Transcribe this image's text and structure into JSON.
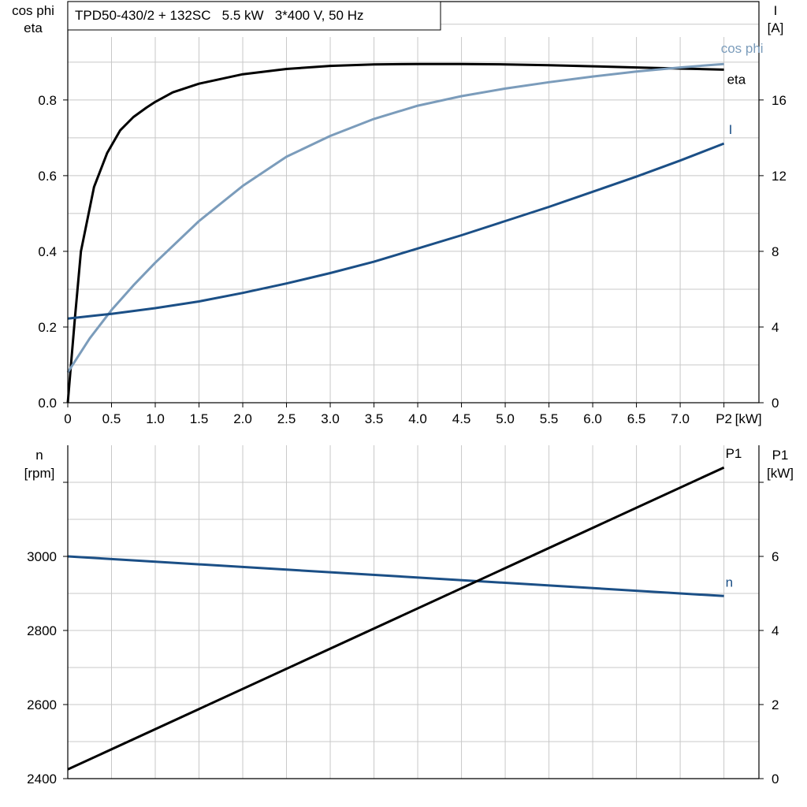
{
  "chart_data": [
    {
      "type": "line",
      "title": "TPD50-430/2 + 132SC   5.5 kW   3*400 V, 50 Hz",
      "xlabel": "P2 [kW]",
      "x_ticks": [
        "0",
        "0.5",
        "1.0",
        "1.5",
        "2.0",
        "2.5",
        "3.0",
        "3.5",
        "4.0",
        "4.5",
        "5.0",
        "5.5",
        "6.0",
        "6.5",
        "7.0"
      ],
      "x_end_label": "P2",
      "x_unit_label": "[kW]",
      "xlim": [
        0,
        7.9
      ],
      "ylabel_left": [
        "cos phi",
        "eta"
      ],
      "ylim_left": [
        0,
        1.06
      ],
      "y_ticks_left": [
        "0.0",
        "0.2",
        "0.4",
        "0.6",
        "0.8"
      ],
      "ylabel_right": [
        "I",
        "[A]"
      ],
      "ylim_right": [
        0,
        21.2
      ],
      "y_ticks_right": [
        "0",
        "4",
        "8",
        "12",
        "16"
      ],
      "grid": true,
      "series": [
        {
          "name": "eta",
          "axis": "left",
          "color": "#000000",
          "x": [
            0,
            0.08,
            0.15,
            0.3,
            0.45,
            0.6,
            0.75,
            0.9,
            1.0,
            1.2,
            1.5,
            2.0,
            2.5,
            3.0,
            3.5,
            4.0,
            4.5,
            5.0,
            5.5,
            6.0,
            6.5,
            7.0,
            7.5
          ],
          "y": [
            0.0,
            0.22,
            0.4,
            0.57,
            0.66,
            0.72,
            0.755,
            0.78,
            0.795,
            0.82,
            0.843,
            0.868,
            0.882,
            0.89,
            0.894,
            0.895,
            0.895,
            0.894,
            0.892,
            0.889,
            0.886,
            0.883,
            0.88
          ]
        },
        {
          "name": "cos phi",
          "axis": "left",
          "color": "#7b9cbb",
          "x": [
            0,
            0.25,
            0.5,
            0.75,
            1.0,
            1.5,
            2.0,
            2.5,
            3.0,
            3.5,
            4.0,
            4.5,
            5.0,
            5.5,
            6.0,
            6.5,
            7.0,
            7.5
          ],
          "y": [
            0.08,
            0.17,
            0.245,
            0.31,
            0.37,
            0.48,
            0.573,
            0.65,
            0.705,
            0.75,
            0.785,
            0.81,
            0.83,
            0.847,
            0.862,
            0.875,
            0.886,
            0.895
          ]
        },
        {
          "name": "I",
          "axis": "right",
          "color": "#1b4f86",
          "x": [
            0,
            0.5,
            1.0,
            1.5,
            2.0,
            2.5,
            3.0,
            3.5,
            4.0,
            4.5,
            5.0,
            5.5,
            6.0,
            6.5,
            7.0,
            7.5
          ],
          "y": [
            4.45,
            4.7,
            5.0,
            5.35,
            5.8,
            6.3,
            6.85,
            7.45,
            8.15,
            8.85,
            9.6,
            10.35,
            11.15,
            11.95,
            12.8,
            13.7
          ]
        }
      ]
    },
    {
      "type": "line",
      "xlim": [
        0,
        7.9
      ],
      "ylabel_left": [
        "n",
        "[rpm]"
      ],
      "ylim_left": [
        2400,
        3300
      ],
      "y_ticks_left": [
        "2400",
        "2600",
        "2800",
        "3000"
      ],
      "ylabel_right": [
        "P1",
        "[kW]"
      ],
      "ylim_right": [
        0,
        9
      ],
      "y_ticks_right": [
        "0",
        "2",
        "4",
        "6"
      ],
      "grid": true,
      "series": [
        {
          "name": "n",
          "axis": "left",
          "color": "#1b4f86",
          "x": [
            0,
            7.5
          ],
          "y": [
            3000,
            2893
          ]
        },
        {
          "name": "P1",
          "axis": "right",
          "color": "#000000",
          "x": [
            0,
            7.5
          ],
          "y": [
            0.25,
            8.4
          ]
        }
      ]
    }
  ]
}
